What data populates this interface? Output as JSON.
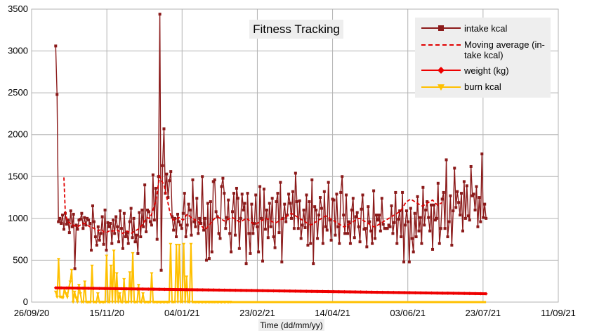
{
  "chart_data": {
    "type": "line",
    "title": "Fitness Tracking",
    "xlabel": "Time (dd/mm/yy)",
    "ylabel": "",
    "ylim": [
      0,
      3500
    ],
    "xlim": [
      "2020-09-26",
      "2021-09-11"
    ],
    "x_ticks": [
      "26/09/20",
      "15/11/20",
      "04/01/21",
      "23/02/21",
      "14/04/21",
      "03/06/21",
      "23/07/21",
      "11/09/21"
    ],
    "y_ticks": [
      "0",
      "500",
      "1000",
      "1500",
      "2000",
      "2500",
      "3000",
      "3500"
    ],
    "grid": true,
    "legend_position": "top-right",
    "x_start": "2020-10-12",
    "x_end": "2021-07-25",
    "series": [
      {
        "name": "intake kcal",
        "color": "#8b1a1a",
        "marker": "square",
        "values": [
          3060,
          2480,
          960,
          1000,
          940,
          1040,
          870,
          1060,
          930,
          980,
          830,
          1090,
          900,
          1050,
          400,
          920,
          870,
          980,
          990,
          1060,
          880,
          1010,
          920,
          1000,
          980,
          940,
          620,
          1150,
          960,
          780,
          680,
          900,
          740,
          820,
          1020,
          690,
          1100,
          620,
          950,
          900,
          940,
          700,
          980,
          820,
          1020,
          900,
          720,
          1090,
          880,
          640,
          1060,
          780,
          830,
          700,
          960,
          1120,
          770,
          1000,
          720,
          800,
          580,
          1070,
          780,
          1100,
          900,
          1400,
          840,
          1100,
          1080,
          960,
          920,
          1520,
          980,
          1360,
          750,
          1500,
          3440,
          380,
          1630,
          2070,
          1300,
          1530,
          1250,
          1450,
          1560,
          1020,
          860,
          1000,
          780,
          1050,
          960,
          920,
          880,
          1060,
          1300,
          780,
          920,
          1170,
          1100,
          800,
          1460,
          960,
          900,
          1240,
          820,
          1000,
          940,
          1500,
          860,
          1000,
          500,
          1180,
          520,
          1200,
          600,
          1440,
          1460,
          1080,
          1020,
          820,
          760,
          1380,
          1480,
          1300,
          880,
          1010,
          1220,
          820,
          600,
          1080,
          1300,
          800,
          1360,
          1240,
          640,
          1000,
          1290,
          1100,
          1180,
          460,
          1300,
          820,
          580,
          1170,
          820,
          940,
          1280,
          900,
          600,
          1380,
          1000,
          490,
          1350,
          870,
          1100,
          770,
          1180,
          900,
          1240,
          780,
          650,
          1200,
          1300,
          830,
          1430,
          480,
          1000,
          1170,
          960,
          1040,
          1290,
          1180,
          1000,
          1320,
          880,
          1540,
          1200,
          880,
          1210,
          760,
          920,
          1100,
          890,
          1280,
          680,
          1200,
          700,
          1460,
          460,
          1140,
          1100,
          760,
          1040,
          1250,
          1120,
          700,
          1320,
          900,
          860,
          1430,
          980,
          740,
          1230,
          1220,
          800,
          1290,
          900,
          700,
          1310,
          1500,
          1040,
          820,
          1280,
          820,
          960,
          700,
          1100,
          1240,
          770,
          1020,
          1070,
          900,
          720,
          1110,
          1280,
          870,
          880,
          660,
          1140,
          960,
          850,
          700,
          1330,
          760,
          1040,
          980,
          1040,
          850,
          1240,
          930,
          880,
          880,
          880,
          920,
          900,
          1150,
          820,
          950,
          1310,
          700,
          990,
          1090,
          780,
          1310,
          480,
          920,
          1090,
          960,
          480,
          1120,
          760,
          600,
          1060,
          780,
          1260,
          850,
          1010,
          700,
          1370,
          920,
          1100,
          1200,
          1010,
          850,
          1160,
          630,
          1160,
          980,
          1000,
          1420,
          700,
          880,
          1230,
          1310,
          880,
          1700,
          780,
          960,
          1270,
          680,
          1090,
          1600,
          1130,
          1320,
          1190,
          1040,
          1300,
          850,
          1440,
          1000,
          1390,
          1030,
          980,
          1620,
          1270,
          1290,
          1100,
          1380,
          900,
          1250,
          960,
          1770,
          1010,
          1170,
          1000
        ]
      },
      {
        "name": "Moving average (in-take kcal)",
        "color": "#e00000",
        "dashed": true,
        "start_index": 6,
        "values": [
          1490,
          1080,
          1000,
          960,
          950,
          930,
          920,
          920,
          910,
          900,
          900,
          910,
          920,
          930,
          940,
          940,
          930,
          920,
          910,
          900,
          900,
          890,
          880,
          870,
          860,
          850,
          860,
          870,
          860,
          840,
          830,
          830,
          840,
          850,
          860,
          850,
          850,
          850,
          860,
          860,
          850,
          840,
          830,
          820,
          830,
          840,
          850,
          840,
          830,
          820,
          830,
          840,
          850,
          860,
          870,
          880,
          900,
          920,
          940,
          970,
          1000,
          1010,
          1000,
          1020,
          1050,
          1100,
          1150,
          1200,
          1300,
          1420,
          1500,
          1460,
          1430,
          1400,
          1330,
          1250,
          1180,
          1100,
          1040,
          1000,
          980,
          980,
          990,
          1000,
          1010,
          1000,
          990,
          980,
          1000,
          1030,
          1050,
          1040,
          1020,
          1010,
          1000,
          990,
          980,
          970,
          960,
          940,
          920,
          900,
          880,
          870,
          880,
          900,
          920,
          940,
          960,
          980,
          1000,
          1010,
          1020,
          1010,
          1000,
          990,
          980,
          970,
          970,
          980,
          990,
          1000,
          1010,
          1010,
          1000,
          990,
          980,
          970,
          960,
          960,
          970,
          980,
          990,
          1000,
          990,
          980,
          960,
          950,
          940,
          930,
          930,
          940,
          950,
          960,
          970,
          980,
          990,
          1000,
          1000,
          990,
          980,
          970,
          960,
          950,
          950,
          950,
          960,
          970,
          980,
          990,
          1000,
          1010,
          1020,
          1030,
          1040,
          1050,
          1060,
          1050,
          1040,
          1030,
          1020,
          1010,
          1000,
          990,
          980,
          970,
          960,
          950,
          940,
          930,
          920,
          930,
          940,
          950,
          960,
          970,
          980,
          990,
          1000,
          1010,
          1020,
          1030,
          1020,
          1010,
          1000,
          990,
          980,
          970,
          960,
          950,
          940,
          930,
          920,
          910,
          900,
          900,
          910,
          920,
          930,
          940,
          950,
          960,
          970,
          980,
          990,
          1000,
          1000,
          990,
          980,
          970,
          960,
          950,
          940,
          930,
          920,
          910,
          900,
          900,
          910,
          920,
          930,
          940,
          950,
          960,
          970,
          980,
          990,
          1000,
          1010,
          1020,
          1030,
          1040,
          1050,
          1060,
          1070,
          1080,
          1100,
          1120,
          1150,
          1180,
          1200,
          1210,
          1220,
          1230,
          1220,
          1210,
          1200,
          1190,
          1180,
          1170,
          1160,
          1150,
          1150,
          1160,
          1170,
          1180,
          1190,
          1200,
          1210,
          1220,
          1200,
          1180,
          1170,
          1160,
          1170,
          1180,
          1190
        ]
      },
      {
        "name": "weight (kg)",
        "color": "#ee0000",
        "marker": "diamond",
        "start_value": 170,
        "end_value": 100
      },
      {
        "name": "burn kcal",
        "color": "#ffc000",
        "marker": "triangle",
        "values": [
          120,
          60,
          510,
          60,
          60,
          50,
          160,
          100,
          60,
          170,
          240,
          380,
          0,
          120,
          50,
          0,
          200,
          100,
          0,
          0,
          240,
          0,
          0,
          0,
          0,
          430,
          0,
          0,
          0,
          100,
          0,
          0,
          0,
          0,
          0,
          550,
          0,
          0,
          430,
          0,
          610,
          0,
          340,
          0,
          100,
          0,
          0,
          270,
          0,
          0,
          0,
          350,
          0,
          580,
          0,
          0,
          0,
          200,
          0,
          0,
          100,
          0,
          0,
          0,
          0,
          0,
          340,
          0,
          0,
          0,
          0,
          0,
          0,
          0,
          0,
          0,
          0,
          0,
          0,
          690,
          0,
          0,
          0,
          680,
          0,
          680,
          0,
          0,
          690,
          0,
          300,
          0,
          0,
          690,
          0,
          0,
          0,
          0,
          0,
          0,
          0,
          0,
          0,
          0,
          0,
          0,
          0,
          0,
          0,
          0,
          0,
          0,
          0,
          0,
          0,
          0,
          0,
          0,
          0,
          0,
          0
        ]
      }
    ],
    "legend": [
      "intake kcal",
      "Moving average (in-take kcal)",
      "weight (kg)",
      "burn kcal"
    ]
  }
}
